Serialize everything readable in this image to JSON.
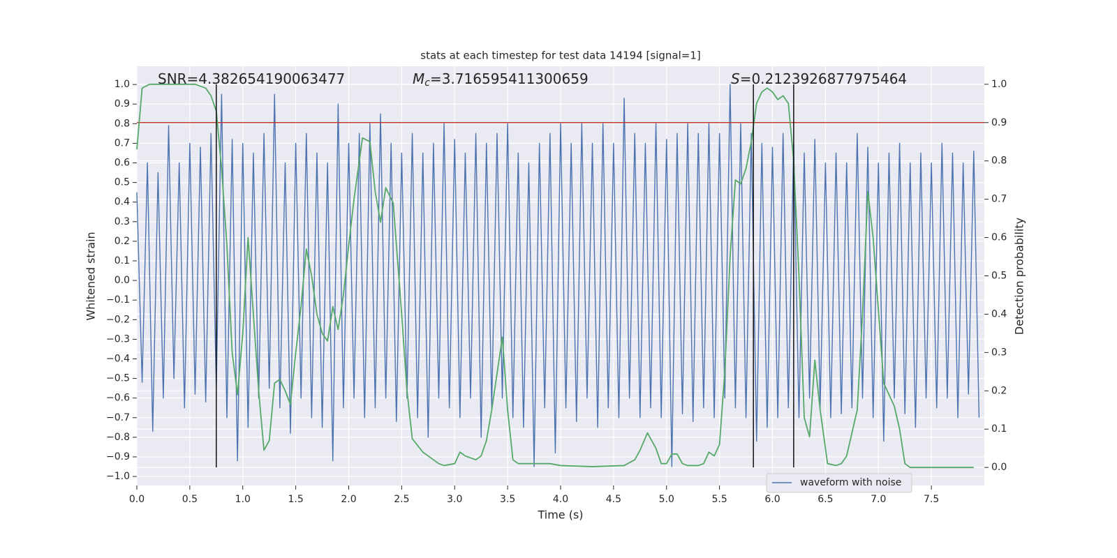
{
  "chart_data": {
    "type": "line",
    "title": "stats at each timestep for test data 14194 [signal=1]",
    "xlabel": "Time (s)",
    "ylabel": "Whitened strain",
    "y2label": "Detection probability",
    "annotations": [
      {
        "text": "SNR=4.382654190063477"
      },
      {
        "symbol": "M",
        "subscript": "c",
        "text": "=3.716595411300659"
      },
      {
        "symbol": "S",
        "text": "=0.2123926877975464"
      }
    ],
    "xlim": [
      0,
      8
    ],
    "ylim": [
      -1.046,
      1.093
    ],
    "y2lim": [
      -0.047,
      1.047
    ],
    "xticks": [
      {
        "value": 0,
        "label": "0.0"
      },
      0.5,
      {
        "value": 1,
        "label": "1.0"
      },
      1.5,
      {
        "value": 2,
        "label": "2.0"
      },
      2.5,
      {
        "value": 3,
        "label": "3.0"
      },
      3.5,
      {
        "value": 4,
        "label": "4.0"
      },
      4.5,
      {
        "value": 5,
        "label": "5.0"
      },
      5.5,
      {
        "value": 6,
        "label": "6.0"
      },
      6.5,
      {
        "value": 7,
        "label": "7.0"
      },
      7.5
    ],
    "yticks": [
      {
        "value": -1,
        "label": "−1.0"
      },
      {
        "value": -0.9,
        "label": "−0.9"
      },
      {
        "value": -0.8,
        "label": "−0.8"
      },
      {
        "value": -0.7,
        "label": "−0.7"
      },
      {
        "value": -0.6,
        "label": "−0.6"
      },
      {
        "value": -0.5,
        "label": "−0.5"
      },
      {
        "value": -0.4,
        "label": "−0.4"
      },
      {
        "value": -0.3,
        "label": "−0.3"
      },
      {
        "value": -0.2,
        "label": "−0.2"
      },
      {
        "value": -0.1,
        "label": "−0.1"
      },
      {
        "value": 0,
        "label": "0.0"
      },
      0.1,
      0.2,
      0.3,
      0.4,
      0.5,
      0.6,
      0.7,
      0.8,
      0.9,
      {
        "value": 1,
        "label": "1.0"
      }
    ],
    "y2ticks": [
      {
        "value": 0,
        "label": "0.0"
      },
      0.1,
      0.2,
      0.3,
      0.4,
      0.5,
      0.6,
      0.7,
      0.8,
      0.9,
      {
        "value": 1,
        "label": "1.0"
      }
    ],
    "grid": true,
    "legend": "lower right",
    "threshold": {
      "value": 0.9,
      "axis": "y2",
      "color": "#c0392b"
    },
    "vlines": {
      "values": [
        0.75,
        5.82,
        6.2
      ],
      "color": "#111111"
    },
    "series": [
      {
        "name": "waveform with noise",
        "color": "#4c72b0",
        "x": [
          0,
          0.05,
          0.1,
          0.15,
          0.2,
          0.25,
          0.3,
          0.35,
          0.4,
          0.45,
          0.5,
          0.55,
          0.6,
          0.65,
          0.7,
          0.75,
          0.8,
          0.85,
          0.9,
          0.95,
          1,
          1.05,
          1.1,
          1.15,
          1.2,
          1.25,
          1.3,
          1.35,
          1.4,
          1.45,
          1.5,
          1.55,
          1.6,
          1.65,
          1.7,
          1.75,
          1.8,
          1.85,
          1.9,
          1.95,
          2,
          2.05,
          2.1,
          2.15,
          2.2,
          2.25,
          2.3,
          2.35,
          2.4,
          2.45,
          2.5,
          2.55,
          2.6,
          2.65,
          2.7,
          2.75,
          2.8,
          2.85,
          2.9,
          2.95,
          3,
          3.05,
          3.1,
          3.15,
          3.2,
          3.25,
          3.3,
          3.35,
          3.4,
          3.45,
          3.5,
          3.55,
          3.6,
          3.65,
          3.7,
          3.75,
          3.8,
          3.85,
          3.9,
          3.95,
          4,
          4.05,
          4.1,
          4.15,
          4.2,
          4.25,
          4.3,
          4.35,
          4.4,
          4.45,
          4.5,
          4.55,
          4.6,
          4.65,
          4.7,
          4.75,
          4.8,
          4.85,
          4.9,
          4.95,
          5,
          5.05,
          5.1,
          5.15,
          5.2,
          5.25,
          5.3,
          5.35,
          5.4,
          5.45,
          5.5,
          5.55,
          5.6,
          5.65,
          5.7,
          5.75,
          5.8,
          5.85,
          5.9,
          5.95,
          6,
          6.05,
          6.1,
          6.15,
          6.2,
          6.25,
          6.3,
          6.35,
          6.4,
          6.45,
          6.5,
          6.55,
          6.6,
          6.65,
          6.7,
          6.75,
          6.8,
          6.85,
          6.9,
          6.95,
          7,
          7.05,
          7.1,
          7.15,
          7.2,
          7.25,
          7.3,
          7.35,
          7.4,
          7.45,
          7.5,
          7.55,
          7.6,
          7.65,
          7.7,
          7.75,
          7.8,
          7.85,
          7.9,
          7.95
        ],
        "values": [
          0.45,
          -0.52,
          0.6,
          -0.77,
          0.55,
          -0.6,
          0.79,
          -0.5,
          0.6,
          -0.65,
          0.7,
          -0.58,
          0.68,
          -0.62,
          0.75,
          -0.55,
          0.95,
          -0.7,
          0.72,
          -0.92,
          0.7,
          -0.75,
          0.65,
          -0.6,
          0.75,
          -0.55,
          0.95,
          -0.65,
          0.6,
          -0.78,
          0.7,
          -0.6,
          0.75,
          -0.7,
          0.65,
          -0.75,
          0.6,
          -0.92,
          0.9,
          -0.65,
          0.7,
          -0.6,
          0.75,
          -0.7,
          0.8,
          -0.65,
          0.85,
          -0.6,
          0.7,
          -0.72,
          0.65,
          -0.6,
          0.75,
          -0.7,
          0.65,
          -0.8,
          0.7,
          -0.6,
          0.8,
          -0.65,
          0.72,
          -0.7,
          0.65,
          -0.6,
          0.75,
          -0.8,
          0.7,
          -0.65,
          0.75,
          -0.6,
          0.8,
          -0.7,
          0.65,
          -0.75,
          0.6,
          -0.95,
          0.7,
          -0.65,
          0.75,
          -0.88,
          0.8,
          -0.65,
          0.7,
          -0.72,
          0.8,
          -0.6,
          0.7,
          -0.75,
          0.8,
          -0.65,
          0.7,
          -0.7,
          0.93,
          -0.6,
          0.75,
          -0.7,
          0.7,
          -0.65,
          0.8,
          -0.7,
          0.72,
          -0.95,
          0.75,
          -0.68,
          0.8,
          -0.72,
          0.75,
          -0.65,
          0.8,
          -0.7,
          0.75,
          -0.6,
          1.0,
          -0.65,
          0.8,
          -0.7,
          0.75,
          -0.82,
          0.7,
          -0.75,
          0.68,
          -0.7,
          0.75,
          -0.65,
          0.7,
          -0.7,
          0.65,
          -0.6,
          0.72,
          -0.65,
          0.6,
          -0.7,
          0.65,
          -0.68,
          0.6,
          -0.65,
          0.75,
          -0.6,
          0.68,
          -0.7,
          0.6,
          -0.82,
          0.65,
          -0.6,
          0.7,
          -0.68,
          0.6,
          -0.75,
          0.65,
          -0.6,
          0.6,
          -0.65,
          0.7,
          -0.6,
          0.65,
          -0.7,
          0.6,
          -0.58,
          0.66,
          -0.7
        ]
      },
      {
        "name": "Detection probability",
        "color": "#55a868",
        "axis": "y2",
        "legend": false,
        "x": [
          0,
          0.05,
          0.12,
          0.55,
          0.65,
          0.7,
          0.75,
          0.8,
          0.85,
          0.9,
          0.95,
          1.0,
          1.05,
          1.1,
          1.15,
          1.2,
          1.25,
          1.3,
          1.35,
          1.4,
          1.45,
          1.5,
          1.55,
          1.6,
          1.65,
          1.7,
          1.75,
          1.8,
          1.85,
          1.9,
          1.95,
          2.0,
          2.05,
          2.1,
          2.13,
          2.2,
          2.25,
          2.3,
          2.35,
          2.42,
          2.5,
          2.55,
          2.6,
          2.7,
          2.75,
          2.8,
          2.85,
          2.9,
          3.0,
          3.05,
          3.1,
          3.2,
          3.25,
          3.3,
          3.35,
          3.45,
          3.5,
          3.55,
          3.6,
          3.7,
          3.9,
          4.0,
          4.3,
          4.6,
          4.7,
          4.75,
          4.82,
          4.9,
          4.95,
          5.0,
          5.05,
          5.1,
          5.15,
          5.2,
          5.3,
          5.35,
          5.4,
          5.45,
          5.5,
          5.55,
          5.6,
          5.65,
          5.7,
          5.75,
          5.8,
          5.85,
          5.9,
          5.95,
          6.0,
          6.05,
          6.1,
          6.15,
          6.2,
          6.25,
          6.3,
          6.35,
          6.4,
          6.45,
          6.52,
          6.6,
          6.65,
          6.7,
          6.8,
          6.85,
          6.9,
          6.95,
          7.05,
          7.15,
          7.2,
          7.25,
          7.3,
          7.9
        ],
        "values": [
          0.83,
          0.99,
          1.0,
          1.0,
          0.99,
          0.97,
          0.93,
          0.78,
          0.58,
          0.3,
          0.19,
          0.35,
          0.6,
          0.4,
          0.2,
          0.045,
          0.07,
          0.22,
          0.23,
          0.2,
          0.165,
          0.3,
          0.42,
          0.57,
          0.5,
          0.4,
          0.35,
          0.33,
          0.42,
          0.36,
          0.45,
          0.58,
          0.7,
          0.8,
          0.86,
          0.85,
          0.72,
          0.64,
          0.73,
          0.69,
          0.4,
          0.2,
          0.075,
          0.04,
          0.03,
          0.02,
          0.01,
          0.005,
          0.01,
          0.04,
          0.03,
          0.02,
          0.03,
          0.07,
          0.15,
          0.34,
          0.15,
          0.02,
          0.01,
          0.01,
          0.01,
          0.005,
          0.002,
          0.005,
          0.02,
          0.045,
          0.09,
          0.05,
          0.01,
          0.01,
          0.035,
          0.035,
          0.01,
          0.005,
          0.005,
          0.01,
          0.04,
          0.03,
          0.06,
          0.25,
          0.55,
          0.75,
          0.74,
          0.78,
          0.85,
          0.95,
          0.98,
          0.99,
          0.98,
          0.96,
          0.97,
          0.95,
          0.8,
          0.5,
          0.13,
          0.08,
          0.28,
          0.15,
          0.01,
          0.005,
          0.01,
          0.03,
          0.15,
          0.4,
          0.72,
          0.6,
          0.22,
          0.16,
          0.1,
          0.01,
          0,
          0
        ]
      }
    ]
  }
}
